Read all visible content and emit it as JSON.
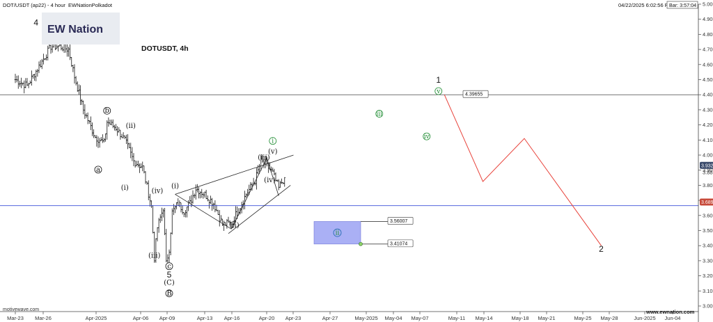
{
  "header": {
    "symbol_line": "DOT/USDT (ap22) - 4 hour",
    "author": "EWNationPolkadot",
    "timestamp": "04/22/2025 6:02:56 PM",
    "bar": "Bar: 3:57:04"
  },
  "logo": {
    "brand": "EW Nation"
  },
  "footer": {
    "left": "motivewave.com",
    "right": "www.ewnation.com"
  },
  "chart_data": {
    "type": "candlestick",
    "title": "DOTUSDT, 4h",
    "x_ticks": [
      "Mar-23",
      "Mar-26",
      "Apr-2025",
      "Apr-06",
      "Apr-09",
      "Apr-13",
      "Apr-16",
      "Apr-20",
      "Apr-23",
      "Apr-27",
      "May-2025",
      "May-04",
      "May-07",
      "May-11",
      "May-14",
      "May-18",
      "May-21",
      "May-25",
      "May-28",
      "Jun-2025",
      "Jun-04"
    ],
    "y_ticks": [
      "3.000",
      "3.100",
      "3.200",
      "3.300",
      "3.400",
      "3.500",
      "3.600",
      "3.700",
      "3.800",
      "3.900",
      "4.000",
      "4.100",
      "4.200",
      "4.300",
      "4.400",
      "4.500",
      "4.600",
      "4.700",
      "4.800",
      "4.900",
      "5.000"
    ],
    "ylim": [
      3.0,
      5.0
    ],
    "price_path": [
      [
        0,
        4.5
      ],
      [
        4,
        4.46
      ],
      [
        9,
        4.62
      ],
      [
        12,
        4.72
      ],
      [
        15,
        4.72
      ],
      [
        18,
        4.7
      ],
      [
        20,
        4.52
      ],
      [
        23,
        4.3
      ],
      [
        27,
        4.12
      ],
      [
        30,
        4.08
      ],
      [
        31,
        4.22
      ],
      [
        34,
        4.18
      ],
      [
        37,
        4.1
      ],
      [
        40,
        3.96
      ],
      [
        43,
        3.92
      ],
      [
        46,
        3.66
      ],
      [
        47,
        3.32
      ],
      [
        48,
        3.52
      ],
      [
        50,
        3.65
      ],
      [
        51,
        3.28
      ],
      [
        52,
        3.38
      ],
      [
        53,
        3.62
      ],
      [
        55,
        3.68
      ],
      [
        57,
        3.63
      ],
      [
        59,
        3.68
      ],
      [
        61,
        3.78
      ],
      [
        64,
        3.74
      ],
      [
        67,
        3.68
      ],
      [
        70,
        3.54
      ],
      [
        73,
        3.55
      ],
      [
        76,
        3.66
      ],
      [
        78,
        3.74
      ],
      [
        81,
        3.83
      ],
      [
        83,
        3.96
      ],
      [
        85,
        3.93
      ],
      [
        87,
        3.88
      ],
      [
        89,
        3.78
      ],
      [
        90,
        3.82
      ],
      [
        91,
        3.85
      ]
    ],
    "current_price": "3.932",
    "price_labels": [
      "3.885",
      "3.689"
    ],
    "horizontal_lines": [
      {
        "price": 4.4
      },
      {
        "price": 3.665
      }
    ],
    "projection": {
      "points": [
        [
          145,
          4.4
        ],
        [
          158,
          3.825
        ],
        [
          172,
          4.11
        ],
        [
          198,
          3.4
        ]
      ]
    },
    "box": {
      "top": 3.56007,
      "bottom": 3.41074,
      "label": "ii",
      "top_label": "3.56007",
      "bottom_label": "3.41074"
    },
    "target_box_label": "4.39655",
    "wave_labels": [
      {
        "t": 7,
        "p": 4.86,
        "text": "4",
        "style": "big"
      },
      {
        "t": 31,
        "p": 4.28,
        "text": "b",
        "style": "circle"
      },
      {
        "t": 39,
        "p": 4.18,
        "text": "ii",
        "style": "paren"
      },
      {
        "t": 28,
        "p": 3.89,
        "text": "a",
        "style": "circle"
      },
      {
        "t": 37,
        "p": 3.77,
        "text": "i",
        "style": "paren"
      },
      {
        "t": 48,
        "p": 3.75,
        "text": "iv",
        "style": "paren"
      },
      {
        "t": 54,
        "p": 3.78,
        "text": "i",
        "style": "paren"
      },
      {
        "t": 47,
        "p": 3.32,
        "text": "iii",
        "style": "paren"
      },
      {
        "t": 52,
        "p": 3.25,
        "text": "c",
        "style": "circle"
      },
      {
        "t": 52,
        "p": 3.19,
        "text": "5",
        "style": "big"
      },
      {
        "t": 52,
        "p": 3.14,
        "text": "C",
        "style": "paren"
      },
      {
        "t": 52,
        "p": 3.07,
        "text": "B",
        "style": "circle"
      },
      {
        "t": 74,
        "p": 3.52,
        "text": "ii",
        "style": "paren"
      },
      {
        "t": 84,
        "p": 3.97,
        "text": "iii",
        "style": "paren"
      },
      {
        "t": 87,
        "p": 4.01,
        "text": "v",
        "style": "paren"
      },
      {
        "t": 86,
        "p": 3.82,
        "text": "iv",
        "style": "paren"
      },
      {
        "t": 87,
        "p": 4.08,
        "text": "i",
        "style": "gcircle"
      },
      {
        "t": 123,
        "p": 4.26,
        "text": "iii",
        "style": "gcircle"
      },
      {
        "t": 139,
        "p": 4.11,
        "text": "iv",
        "style": "gcircle"
      },
      {
        "t": 143,
        "p": 4.48,
        "text": "1",
        "style": "big"
      },
      {
        "t": 143,
        "p": 4.41,
        "text": "v",
        "style": "gcircle"
      },
      {
        "t": 198,
        "p": 3.36,
        "text": "2",
        "style": "big"
      }
    ],
    "trendlines": [
      {
        "a": [
          54,
          3.74
        ],
        "b": [
          94,
          4.0
        ]
      },
      {
        "a": [
          72,
          3.48
        ],
        "b": [
          93,
          3.8
        ]
      },
      {
        "a": [
          54,
          3.74
        ],
        "b": [
          73,
          3.51
        ]
      },
      {
        "a": [
          73,
          3.51
        ],
        "b": [
          85,
          3.98
        ]
      },
      {
        "a": [
          85,
          3.98
        ],
        "b": [
          89,
          3.73
        ]
      }
    ],
    "colors": {
      "projection": "#e8423a",
      "support": "#3c4fd8",
      "box_fill": "#aab0f5",
      "wave_green": "#1a8a2e",
      "box_label": "#2b6fb5"
    }
  }
}
